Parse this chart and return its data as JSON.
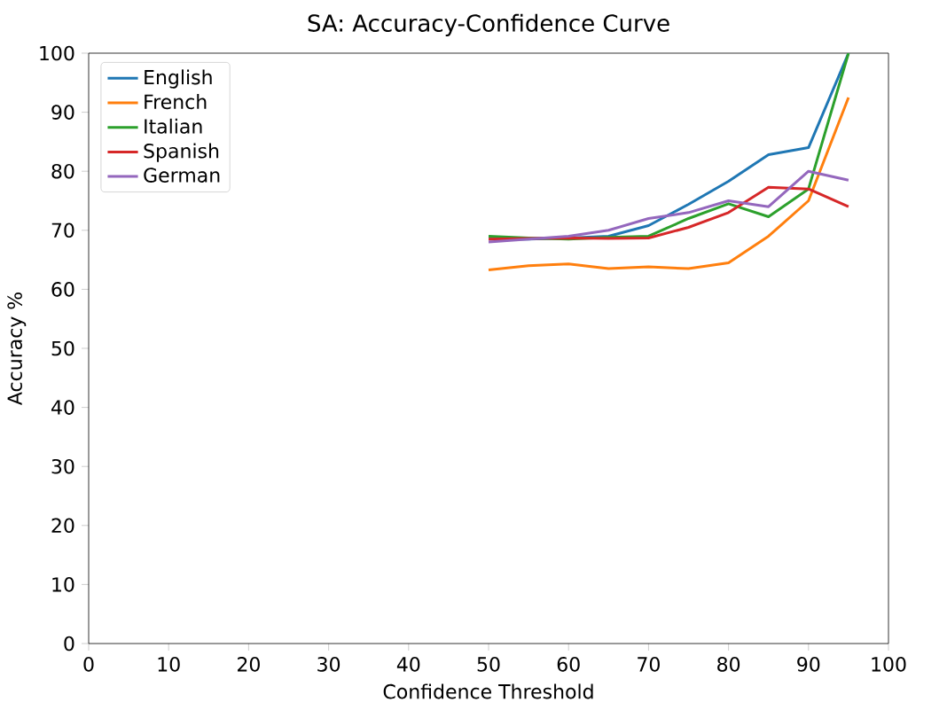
{
  "chart_data": {
    "type": "line",
    "title": "SA: Accuracy-Confidence Curve",
    "xlabel": "Confidence Threshold",
    "ylabel": "Accuracy %",
    "x": [
      50,
      55,
      60,
      65,
      70,
      75,
      80,
      85,
      90,
      95
    ],
    "series": [
      {
        "name": "English",
        "color": "#1f77b4",
        "values": [
          68.5,
          68.5,
          68.7,
          69,
          70.8,
          74.4,
          78.3,
          82.8,
          84,
          100
        ]
      },
      {
        "name": "French",
        "color": "#ff7f0e",
        "values": [
          63.3,
          64,
          64.3,
          63.5,
          63.8,
          63.5,
          64.5,
          69,
          75,
          92.5
        ]
      },
      {
        "name": "Italian",
        "color": "#2ca02c",
        "values": [
          69,
          68.7,
          68.5,
          68.8,
          69,
          72,
          74.5,
          72.3,
          77,
          100
        ]
      },
      {
        "name": "Spanish",
        "color": "#d62728",
        "values": [
          68.5,
          68.6,
          68.7,
          68.6,
          68.7,
          70.5,
          73,
          77.3,
          77,
          74
        ]
      },
      {
        "name": "German",
        "color": "#9467bd",
        "values": [
          68,
          68.5,
          69,
          70,
          72,
          73,
          75,
          74,
          80,
          78.5
        ]
      }
    ],
    "xlim": [
      0,
      100
    ],
    "ylim": [
      0,
      100
    ],
    "xticks": [
      0,
      10,
      20,
      30,
      40,
      50,
      60,
      70,
      80,
      90,
      100
    ],
    "yticks": [
      0,
      10,
      20,
      30,
      40,
      50,
      60,
      70,
      80,
      90,
      100
    ],
    "legend": "top left",
    "grid": false,
    "marker": "none",
    "line_style": "solid"
  }
}
